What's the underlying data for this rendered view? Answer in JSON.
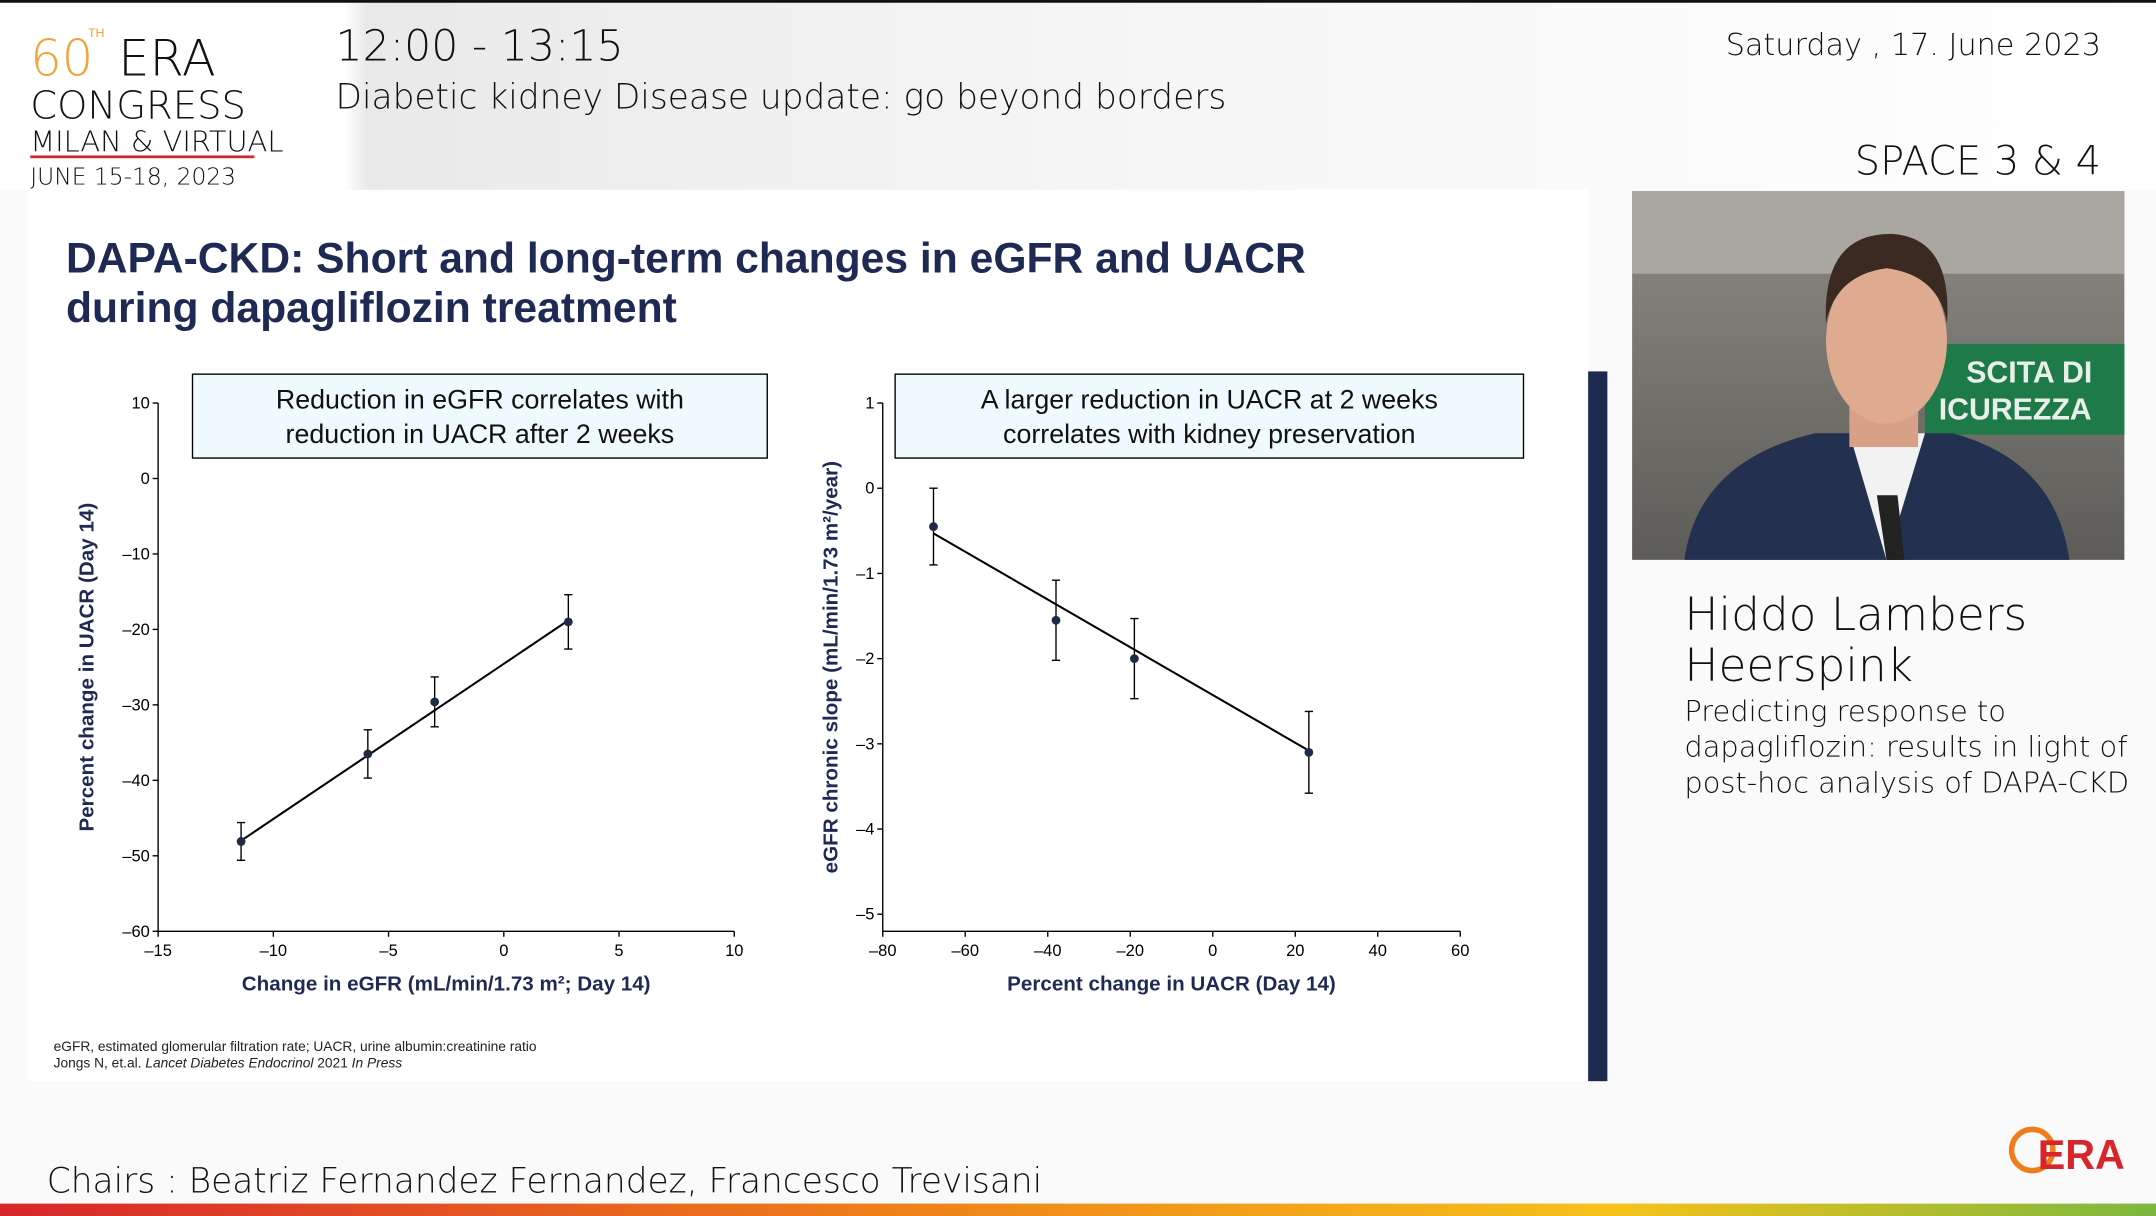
{
  "header": {
    "logo": [
      "60",
      "TH",
      "ERA",
      "CONGRESS",
      "MILAN & VIRTUAL",
      "JUNE 15-18, 2023"
    ],
    "time": "12:00 - 13:15",
    "session": "Diabetic kidney Disease update: go beyond borders",
    "date": "Saturday , 17. June 2023",
    "room": "SPACE 3 & 4"
  },
  "slide": {
    "title": [
      "DAPA-CKD: Short and long-term changes in eGFR and UACR",
      "during dapagliflozin treatment"
    ],
    "footnotes": [
      "eGFR, estimated glomerular filtration rate; UACR, urine albumin:creatinine ratio",
      [
        "Jongs N, et.al. ",
        "Lancet Diabetes Endocrinol",
        " 2021 ",
        "In Press"
      ]
    ]
  },
  "chart_data": [
    {
      "type": "scatter",
      "annotation": [
        "Reduction in eGFR correlates with",
        "reduction in UACR after 2 weeks"
      ],
      "x_label": "Change in eGFR (mL/min/1.73 m²; Day 14)",
      "y_label": "Percent change in UACR (Day 14)",
      "x": [
        -11.4,
        -5.9,
        -3.0,
        2.8
      ],
      "y": [
        -48.1,
        -36.5,
        -29.6,
        -19.0
      ],
      "errors": [
        2.5,
        3.2,
        3.3,
        3.6
      ],
      "fit_x": [
        -11.4,
        2.8
      ],
      "fit_y": [
        -48.0,
        -18.8
      ],
      "color": "#1f2a44",
      "xlim": [
        -15,
        10
      ],
      "xticks": [
        {
          "value": -15,
          "label": "–15"
        },
        {
          "value": -10,
          "label": "–10"
        },
        {
          "value": -5,
          "label": "–5"
        },
        0,
        5,
        10
      ],
      "ylim": [
        -60,
        10
      ],
      "yticks": [
        10,
        0,
        {
          "value": -10,
          "label": "–10"
        },
        {
          "value": -20,
          "label": "–20"
        },
        {
          "value": -30,
          "label": "–30"
        },
        {
          "value": -40,
          "label": "–40"
        },
        {
          "value": -50,
          "label": "–50"
        },
        {
          "value": -60,
          "label": "–60"
        }
      ]
    },
    {
      "type": "scatter",
      "annotation": [
        "A larger reduction in UACR at 2 weeks",
        "correlates with kidney preservation"
      ],
      "x_label": "Percent change in UACR (Day 14)",
      "y_label": "eGFR chronic slope (mL/min/1.73 m²/year)",
      "x": [
        -67.7,
        -38,
        -19,
        23.3
      ],
      "y": [
        -0.45,
        -1.55,
        -2.0,
        -3.1
      ],
      "errors": [
        0.45,
        0.47,
        0.47,
        0.48
      ],
      "fit_x": [
        -67.7,
        23.3
      ],
      "fit_y": [
        -0.53,
        -3.08
      ],
      "color": "#1f2a44",
      "xlim": [
        -80,
        60
      ],
      "xticks": [
        {
          "value": -80,
          "label": "–80"
        },
        {
          "value": -60,
          "label": "–60"
        },
        {
          "value": -40,
          "label": "–40"
        },
        {
          "value": -20,
          "label": "–20"
        },
        0,
        20,
        40,
        60
      ],
      "ylim": [
        -5.2,
        1
      ],
      "yticks": [
        1,
        0,
        {
          "value": -1,
          "label": "–1"
        },
        {
          "value": -2,
          "label": "–2"
        },
        {
          "value": -3,
          "label": "–3"
        },
        {
          "value": -4,
          "label": "–4"
        },
        {
          "value": -5,
          "label": "–5"
        }
      ]
    }
  ],
  "speaker": {
    "name": [
      "Hiddo Lambers",
      "Heerspink"
    ],
    "talk": [
      "Predicting response to",
      "dapagliflozin: results in light of",
      "post-hoc analysis of DAPA-CKD"
    ],
    "photo_sign": [
      "SCITA DI",
      "ICUREZZA"
    ]
  },
  "footer": {
    "chairs": "Chairs : Beatriz Fernandez Fernandez, Francesco Trevisani",
    "logo": "ERA"
  }
}
